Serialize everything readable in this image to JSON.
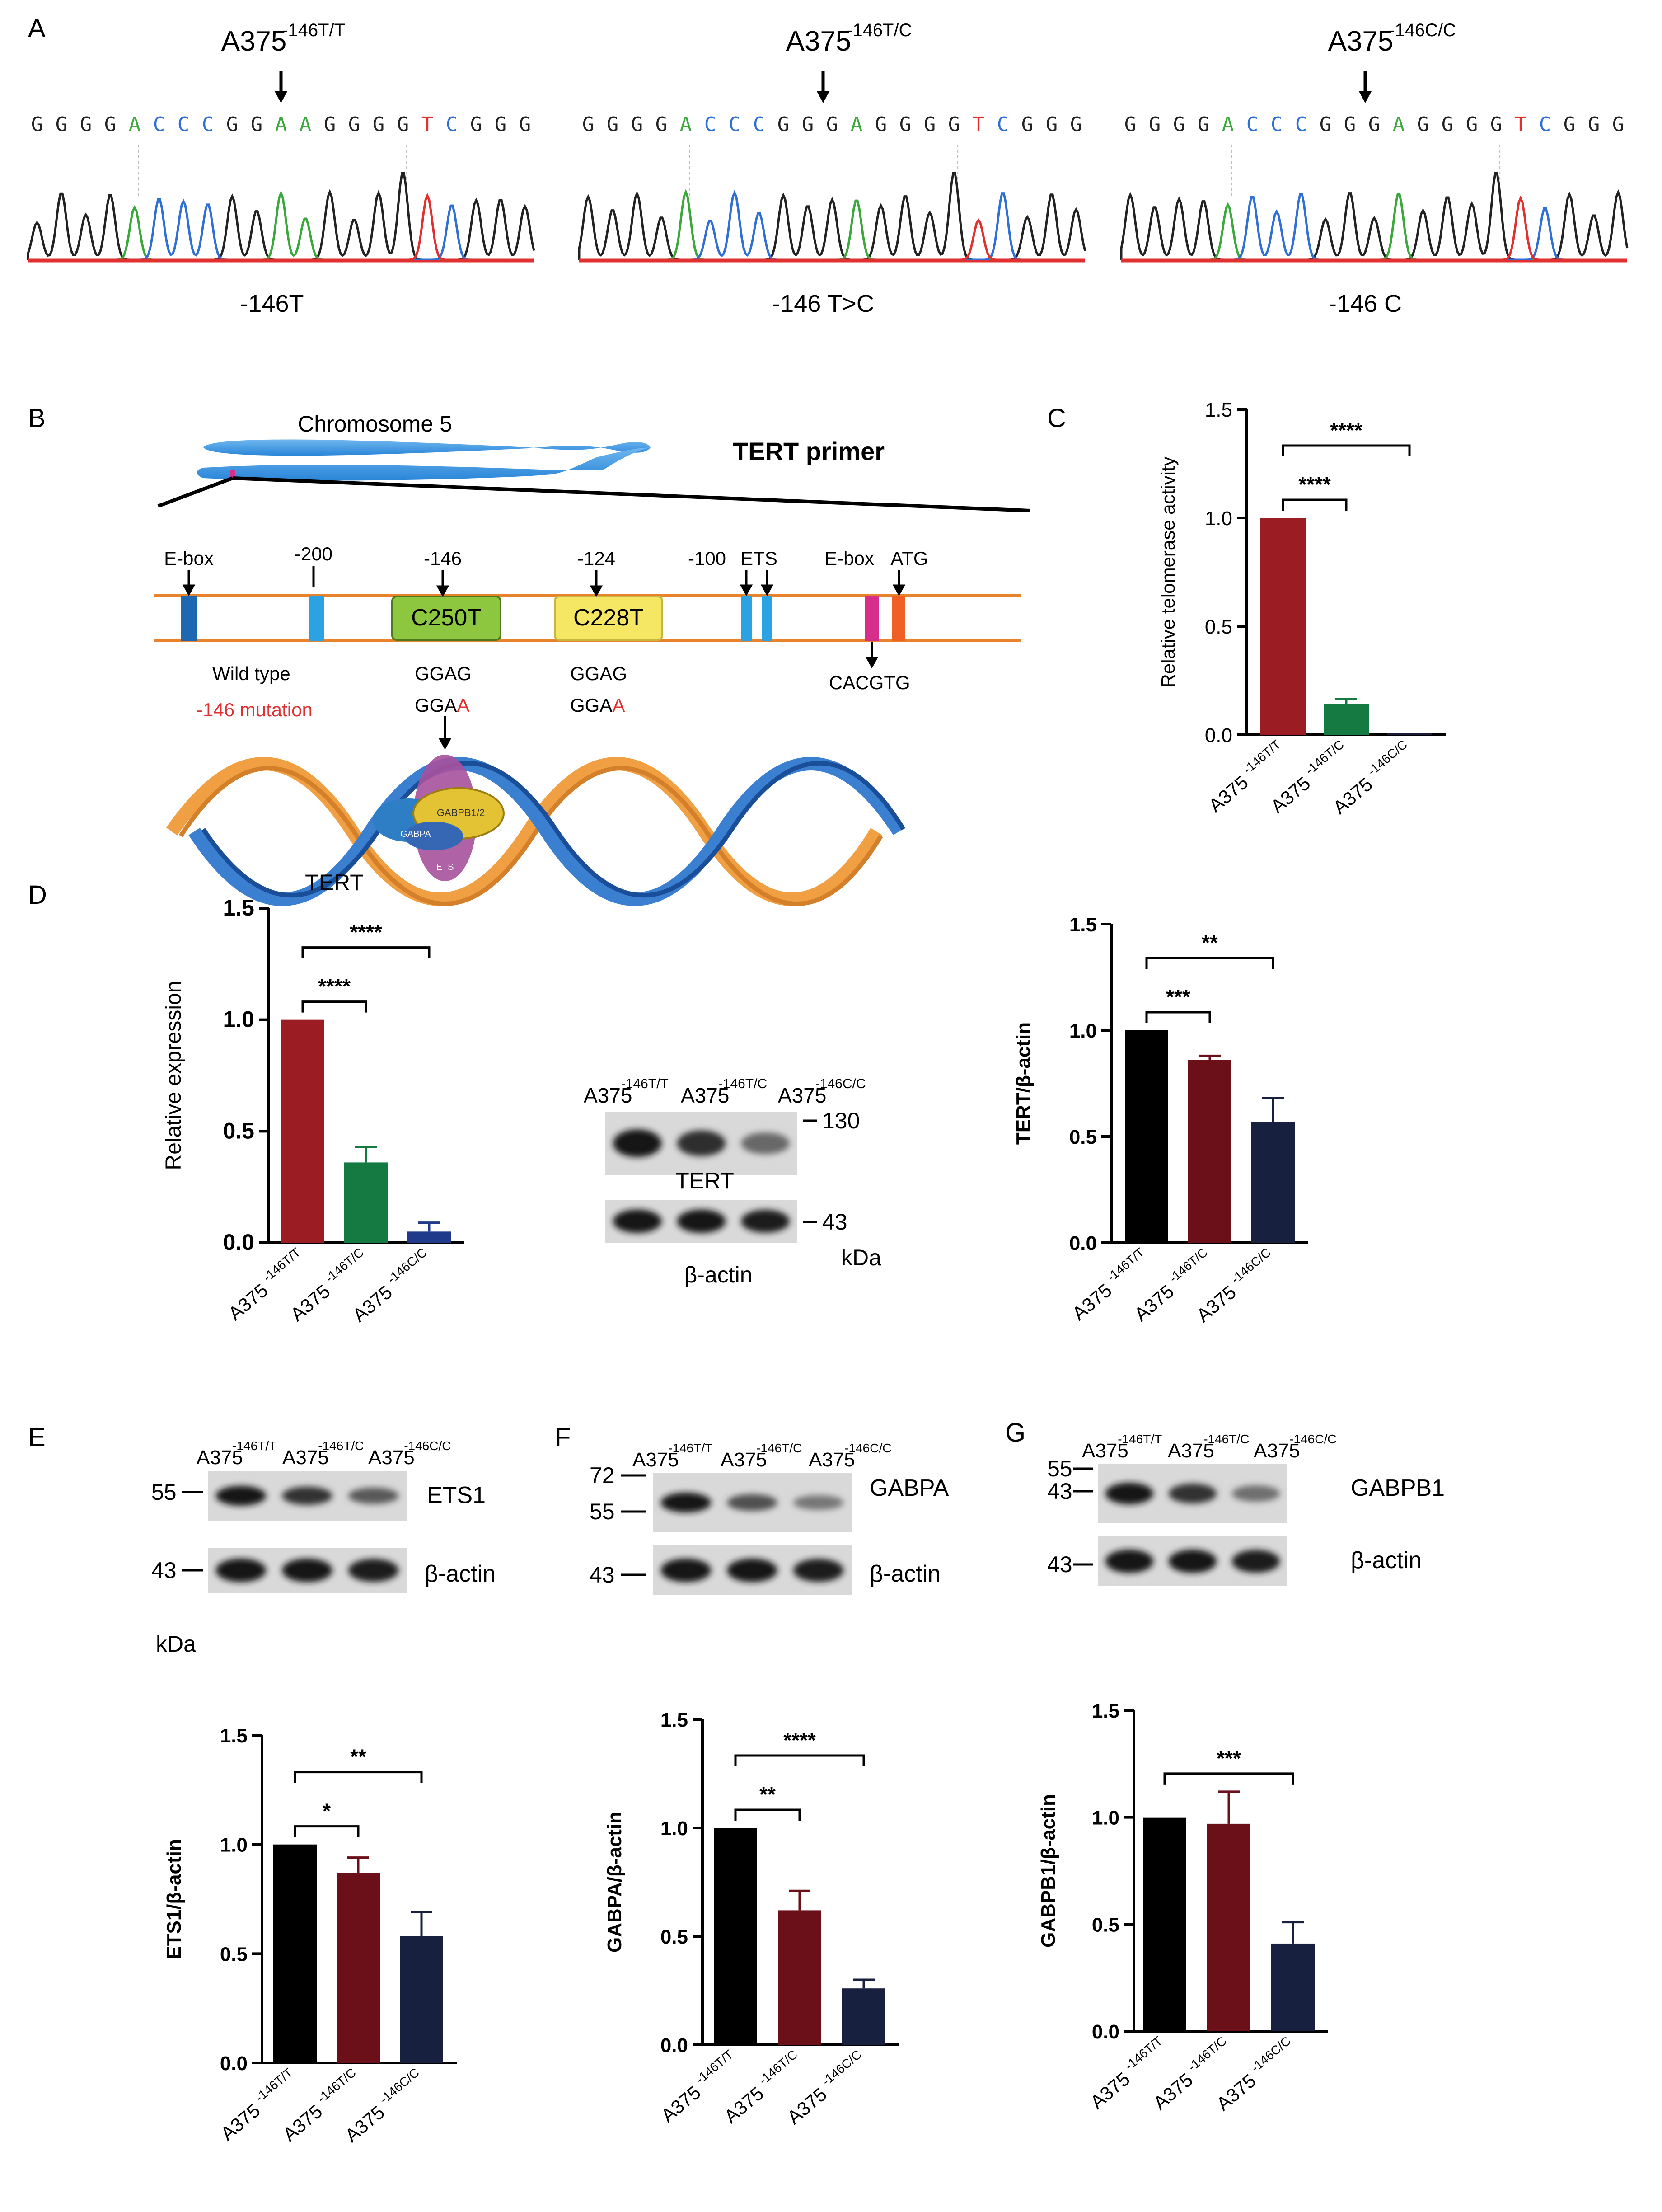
{
  "panel_labels": {
    "A": "A",
    "B": "B",
    "C": "C",
    "D": "D",
    "E": "E",
    "F": "F",
    "G": "G"
  },
  "panel_a": {
    "traces": [
      {
        "cell": "A375",
        "genotype": "-146T/T",
        "sequence": [
          "G",
          "G",
          "G",
          "G",
          "A",
          "C",
          "C",
          "C",
          "G",
          "G",
          "A",
          "A",
          "G",
          "G",
          "G",
          "G",
          "T",
          "C",
          "G",
          "G",
          "G"
        ],
        "caption": "-146T"
      },
      {
        "cell": "A375",
        "genotype": "-146T/C",
        "sequence": [
          "G",
          "G",
          "G",
          "G",
          "A",
          "C",
          "C",
          "C",
          "G",
          "G",
          "G",
          "A",
          "G",
          "G",
          "G",
          "G",
          "T",
          "C",
          "G",
          "G",
          "G"
        ],
        "caption": "-146 T>C"
      },
      {
        "cell": "A375",
        "genotype": "-146C/C",
        "sequence": [
          "G",
          "G",
          "G",
          "G",
          "A",
          "C",
          "C",
          "C",
          "G",
          "G",
          "G",
          "A",
          "G",
          "G",
          "G",
          "G",
          "T",
          "C",
          "G",
          "G",
          "G"
        ],
        "caption": "-146 C"
      }
    ],
    "base_colors": {
      "G": "#222222",
      "A": "#3aa83a",
      "C": "#2f6fd6",
      "T": "#e03030"
    }
  },
  "panel_b": {
    "chromosome_label": "Chromosome 5",
    "title": "TERT primer",
    "positions": {
      "ebox1": "E-box",
      "p200": "-200",
      "p146": "-146",
      "p124": "-124",
      "p100": "-100",
      "ets": "ETS",
      "ebox2": "E-box",
      "atg": "ATG"
    },
    "box_c250t": "C250T",
    "box_c228t": "C228T",
    "wild_type": "Wild type",
    "mutation": "-146 mutation",
    "seq_wt_1": "GGAG",
    "seq_mut_1_prefix": "GGA",
    "seq_mut_1_suffix": "A",
    "seq_wt_2": "GGAG",
    "seq_mut_2_prefix": "GGA",
    "seq_mut_2_suffix": "A",
    "cacgtg": "CACGTG",
    "complex_labels": {
      "gabpa": "GABPA",
      "gabpb": "GABPB1/2",
      "ets": "ETS"
    },
    "colors": {
      "c250t": "#8dc63f",
      "c228t": "#f5e663",
      "mutation": "#e03030"
    }
  },
  "chart_data": [
    {
      "panel": "C",
      "type": "bar",
      "categories": [
        "A375 -146T/T",
        "A375 -146T/C",
        "A375 -146C/C"
      ],
      "values": [
        1.0,
        0.14,
        0.01
      ],
      "errors": [
        0.0,
        0.025,
        0.0
      ],
      "ylabel": "Relative telomerase activity",
      "ylim": [
        0,
        1.5
      ],
      "yticks": [
        "0.0",
        "0.5",
        "1.0",
        "1.5"
      ],
      "colors": [
        "#9b1c22",
        "#157a42",
        "#1a1a3a"
      ],
      "significance": [
        {
          "from": 0,
          "to": 1,
          "label": "****"
        },
        {
          "from": 0,
          "to": 2,
          "label": "****"
        }
      ]
    },
    {
      "panel": "D-left",
      "type": "bar",
      "title": "TERT",
      "categories": [
        "A375 -146T/T",
        "A375 -146T/C",
        "A375 -146C/C"
      ],
      "values": [
        1.0,
        0.36,
        0.05
      ],
      "errors": [
        0.0,
        0.07,
        0.04
      ],
      "ylabel": "Relative expression",
      "ylim": [
        0,
        1.5
      ],
      "yticks": [
        "0.0",
        "0.5",
        "1.0",
        "1.5"
      ],
      "colors": [
        "#9b1c22",
        "#157a42",
        "#1f3a8a"
      ],
      "significance": [
        {
          "from": 0,
          "to": 1,
          "label": "****"
        },
        {
          "from": 0,
          "to": 2,
          "label": "****"
        }
      ]
    },
    {
      "panel": "D-right",
      "type": "bar",
      "categories": [
        "A375 -146T/T",
        "A375 -146T/C",
        "A375 -146C/C"
      ],
      "values": [
        1.0,
        0.86,
        0.57
      ],
      "errors": [
        0.0,
        0.02,
        0.11
      ],
      "ylabel": "TERT/β-actin",
      "ylim": [
        0,
        1.5
      ],
      "yticks": [
        "0.0",
        "0.5",
        "1.0",
        "1.5"
      ],
      "colors": [
        "#000000",
        "#6b0f19",
        "#17213f"
      ],
      "significance": [
        {
          "from": 0,
          "to": 1,
          "label": "***"
        },
        {
          "from": 0,
          "to": 2,
          "label": "**"
        }
      ]
    },
    {
      "panel": "E",
      "type": "bar",
      "categories": [
        "A375 -146T/T",
        "A375 -146T/C",
        "A375 -146C/C"
      ],
      "values": [
        1.0,
        0.87,
        0.58
      ],
      "errors": [
        0.0,
        0.07,
        0.11
      ],
      "ylabel": "ETS1/β-actin",
      "ylim": [
        0,
        1.5
      ],
      "yticks": [
        "0.0",
        "0.5",
        "1.0",
        "1.5"
      ],
      "colors": [
        "#000000",
        "#6b0f19",
        "#17213f"
      ],
      "significance": [
        {
          "from": 0,
          "to": 1,
          "label": "*"
        },
        {
          "from": 0,
          "to": 2,
          "label": "**"
        }
      ]
    },
    {
      "panel": "F",
      "type": "bar",
      "categories": [
        "A375 -146T/T",
        "A375 -146T/C",
        "A375 -146C/C"
      ],
      "values": [
        1.0,
        0.62,
        0.26
      ],
      "errors": [
        0.0,
        0.09,
        0.04
      ],
      "ylabel": "GABPA/β-actin",
      "ylim": [
        0,
        1.5
      ],
      "yticks": [
        "0.0",
        "0.5",
        "1.0",
        "1.5"
      ],
      "colors": [
        "#000000",
        "#6b0f19",
        "#17213f"
      ],
      "significance": [
        {
          "from": 0,
          "to": 1,
          "label": "**"
        },
        {
          "from": 0,
          "to": 2,
          "label": "****"
        }
      ]
    },
    {
      "panel": "G",
      "type": "bar",
      "categories": [
        "A375 -146T/T",
        "A375 -146T/C",
        "A375 -146C/C"
      ],
      "values": [
        1.0,
        0.97,
        0.41
      ],
      "errors": [
        0.0,
        0.15,
        0.1
      ],
      "ylabel": "GABPB1/β-actin",
      "ylim": [
        0,
        1.5
      ],
      "yticks": [
        "0.0",
        "0.5",
        "1.0",
        "1.5"
      ],
      "colors": [
        "#000000",
        "#6b0f19",
        "#17213f"
      ],
      "significance": [
        {
          "from": 0,
          "to": 2,
          "label": "***"
        }
      ]
    }
  ],
  "blots": {
    "cell": "A375",
    "genotypes": [
      "-146T/T",
      "-146T/C",
      "-146C/C"
    ],
    "kda": "kDa",
    "d": {
      "protein": "TERT",
      "protein_size": "130",
      "loading": "β-actin",
      "loading_size": "43",
      "band_intensity": [
        1.0,
        0.82,
        0.45
      ]
    },
    "e": {
      "protein": "ETS1",
      "protein_size": "55",
      "loading": "β-actin",
      "loading_size": "43",
      "band_intensity": [
        1.0,
        0.8,
        0.55
      ]
    },
    "f": {
      "protein": "GABPA",
      "marker_72": "72",
      "marker_55": "55",
      "loading": "β-actin",
      "loading_size": "43",
      "band_intensity": [
        1.0,
        0.6,
        0.35
      ]
    },
    "g": {
      "protein": "GABPB1",
      "marker_55": "55",
      "marker_43": "43",
      "loading": "β-actin",
      "loading_size": "43",
      "band_intensity": [
        1.0,
        0.8,
        0.4
      ]
    }
  }
}
